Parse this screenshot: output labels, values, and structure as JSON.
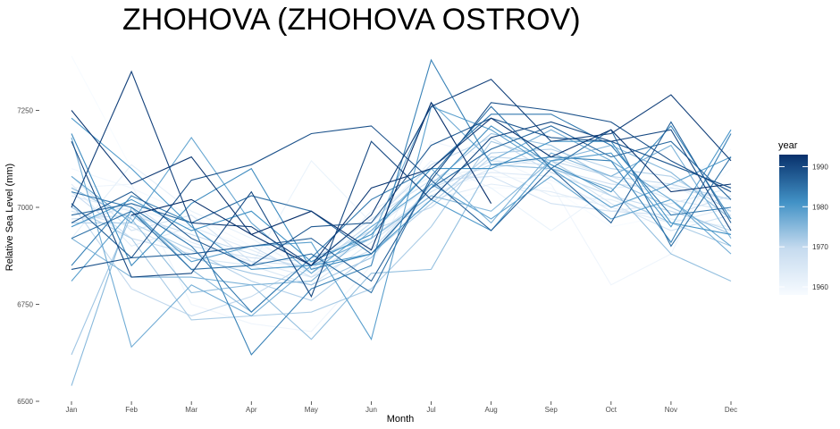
{
  "chart_data": {
    "type": "line",
    "title": "ZHOHOVA (ZHOHOVA OSTROV)",
    "xlabel": "Month",
    "ylabel": "Relative Sea Level (mm)",
    "x": [
      "Jan",
      "Feb",
      "Mar",
      "Apr",
      "May",
      "Jun",
      "Jul",
      "Aug",
      "Sep",
      "Oct",
      "Nov",
      "Dec"
    ],
    "ylim": [
      6500,
      7390
    ],
    "yticks": [
      "6500",
      "6750",
      "7000",
      "7250"
    ],
    "grid": false,
    "legend": {
      "title": "year",
      "position": "right",
      "range": [
        1958,
        1993
      ],
      "ticks": [
        "1960",
        "1970",
        "1980",
        "1990"
      ],
      "color_low": "#f7fbff",
      "color_high": "#08306b"
    },
    "series": [
      {
        "year": 1958,
        "values": [
          7390,
          7100,
          6950,
          6900,
          6850,
          6950,
          7000,
          7050,
          7050,
          6950,
          6980,
          7100
        ]
      },
      {
        "year": 1959,
        "values": [
          7100,
          7050,
          6980,
          6900,
          6870,
          6950,
          7050,
          7080,
          7070,
          7000,
          7050,
          7150
        ]
      },
      {
        "year": 1960,
        "values": [
          7050,
          7060,
          6750,
          6700,
          6680,
          6850,
          7170,
          7130,
          7060,
          6800,
          6880,
          7200
        ]
      },
      {
        "year": 1961,
        "values": [
          6960,
          7000,
          6950,
          6850,
          7120,
          6960,
          7120,
          7050,
          6940,
          7050,
          7060,
          6980
        ]
      },
      {
        "year": 1962,
        "values": [
          6920,
          7110,
          6990,
          6920,
          6830,
          6990,
          7080,
          7100,
          7030,
          7020,
          6970,
          6950
        ]
      },
      {
        "year": 1963,
        "values": [
          7060,
          6900,
          6950,
          6890,
          6830,
          6920,
          7020,
          7060,
          7040,
          7000,
          6960,
          7000
        ]
      },
      {
        "year": 1964,
        "values": [
          7030,
          6990,
          6910,
          6860,
          6820,
          6940,
          7060,
          7090,
          7080,
          6990,
          7010,
          7050
        ]
      },
      {
        "year": 1965,
        "values": [
          6990,
          6950,
          6870,
          6850,
          6800,
          6910,
          7030,
          7100,
          7130,
          7080,
          7020,
          6990
        ]
      },
      {
        "year": 1966,
        "values": [
          7080,
          6940,
          6980,
          6860,
          6850,
          6920,
          7040,
          7120,
          7110,
          7010,
          6940,
          6980
        ]
      },
      {
        "year": 1967,
        "values": [
          6950,
          7010,
          6900,
          6870,
          6860,
          6970,
          7070,
          7080,
          7010,
          6990,
          6980,
          7030
        ]
      },
      {
        "year": 1968,
        "values": [
          7040,
          6920,
          6880,
          6900,
          6820,
          6890,
          7050,
          7110,
          7100,
          7060,
          7050,
          7020
        ]
      },
      {
        "year": 1969,
        "values": [
          6970,
          6980,
          6930,
          6880,
          6840,
          6960,
          7110,
          7180,
          7090,
          7030,
          6990,
          6940
        ]
      },
      {
        "year": 1970,
        "values": [
          7010,
          6790,
          6720,
          6770,
          6860,
          6940,
          7000,
          7130,
          7120,
          7080,
          7060,
          7020
        ]
      },
      {
        "year": 1971,
        "values": [
          6960,
          6960,
          6890,
          6810,
          6760,
          6880,
          7010,
          7140,
          7150,
          7100,
          7080,
          6990
        ]
      },
      {
        "year": 1972,
        "values": [
          7000,
          6920,
          6710,
          6720,
          6730,
          6790,
          6950,
          7170,
          7120,
          7030,
          6960,
          6900
        ]
      },
      {
        "year": 1973,
        "values": [
          6620,
          6980,
          6870,
          6830,
          6800,
          6870,
          7060,
          7190,
          7160,
          7070,
          7000,
          6930
        ]
      },
      {
        "year": 1974,
        "values": [
          7050,
          6970,
          6780,
          6800,
          6660,
          6830,
          6840,
          7110,
          7100,
          7050,
          6880,
          6810
        ]
      },
      {
        "year": 1975,
        "values": [
          6540,
          7000,
          6840,
          6730,
          6870,
          6920,
          7030,
          6990,
          7120,
          7160,
          7090,
          6970
        ]
      },
      {
        "year": 1976,
        "values": [
          6920,
          6820,
          6820,
          6800,
          6810,
          6940,
          7100,
          6960,
          7140,
          7080,
          7160,
          6920
        ]
      },
      {
        "year": 1977,
        "values": [
          7180,
          6640,
          6800,
          6720,
          6850,
          6920,
          7270,
          7120,
          7200,
          7120,
          7020,
          6880
        ]
      },
      {
        "year": 1978,
        "values": [
          7080,
          6960,
          7180,
          6960,
          6830,
          6950,
          7060,
          6970,
          7080,
          6970,
          7020,
          6900
        ]
      },
      {
        "year": 1979,
        "values": [
          6810,
          6990,
          6860,
          6900,
          6910,
          6660,
          7260,
          7200,
          7100,
          7000,
          7060,
          7130
        ]
      },
      {
        "year": 1980,
        "values": [
          7230,
          7100,
          6950,
          6840,
          6850,
          6880,
          7020,
          6940,
          7120,
          7140,
          6950,
          7200
        ]
      },
      {
        "year": 1981,
        "values": [
          6950,
          7020,
          6940,
          6990,
          6860,
          6930,
          7100,
          7100,
          7170,
          7170,
          6960,
          6930
        ]
      },
      {
        "year": 1982,
        "values": [
          7190,
          6850,
          7010,
          7100,
          6840,
          6880,
          7050,
          7210,
          7110,
          7040,
          7210,
          6970
        ]
      },
      {
        "year": 1983,
        "values": [
          6850,
          7030,
          6960,
          6620,
          6790,
          6850,
          7380,
          7110,
          7130,
          7120,
          6910,
          7190
        ]
      },
      {
        "year": 1984,
        "values": [
          7040,
          7000,
          6900,
          6730,
          6870,
          7020,
          7100,
          7240,
          7240,
          7160,
          6980,
          7000
        ]
      },
      {
        "year": 1985,
        "values": [
          6920,
          6990,
          6840,
          6850,
          6880,
          6780,
          7080,
          7260,
          7100,
          7200,
          6900,
          7130
        ]
      },
      {
        "year": 1986,
        "values": [
          6980,
          7010,
          6960,
          7030,
          6990,
          6880,
          7050,
          7150,
          7210,
          7130,
          7170,
          7020
        ]
      },
      {
        "year": 1987,
        "values": [
          7010,
          6870,
          6880,
          6900,
          6920,
          6810,
          7070,
          6940,
          7100,
          6960,
          7220,
          6960
        ]
      },
      {
        "year": 1988,
        "values": [
          6960,
          7040,
          6920,
          6850,
          6950,
          6960,
          7160,
          7230,
          7180,
          7170,
          7110,
          7050
        ]
      },
      {
        "year": 1989,
        "values": [
          6840,
          6870,
          7070,
          7110,
          7190,
          7210,
          7070,
          7270,
          7250,
          7220,
          7120,
          7040
        ]
      },
      {
        "year": 1990,
        "values": [
          7170,
          6820,
          6830,
          7040,
          6770,
          7170,
          7020,
          7180,
          7220,
          7170,
          7200,
          6940
        ]
      },
      {
        "year": 1991,
        "values": [
          7000,
          7350,
          6960,
          6950,
          6850,
          6980,
          7260,
          7330,
          7170,
          7190,
          7290,
          7120
        ]
      },
      {
        "year": 1992,
        "values": [
          7250,
          7060,
          7130,
          6930,
          6850,
          7050,
          7100,
          7230,
          7130,
          7200,
          7040,
          7060
        ]
      },
      {
        "year": 1993,
        "values": [
          null,
          6980,
          7020,
          6930,
          6990,
          6890,
          7270,
          7010,
          null,
          null,
          null,
          null
        ]
      }
    ]
  }
}
